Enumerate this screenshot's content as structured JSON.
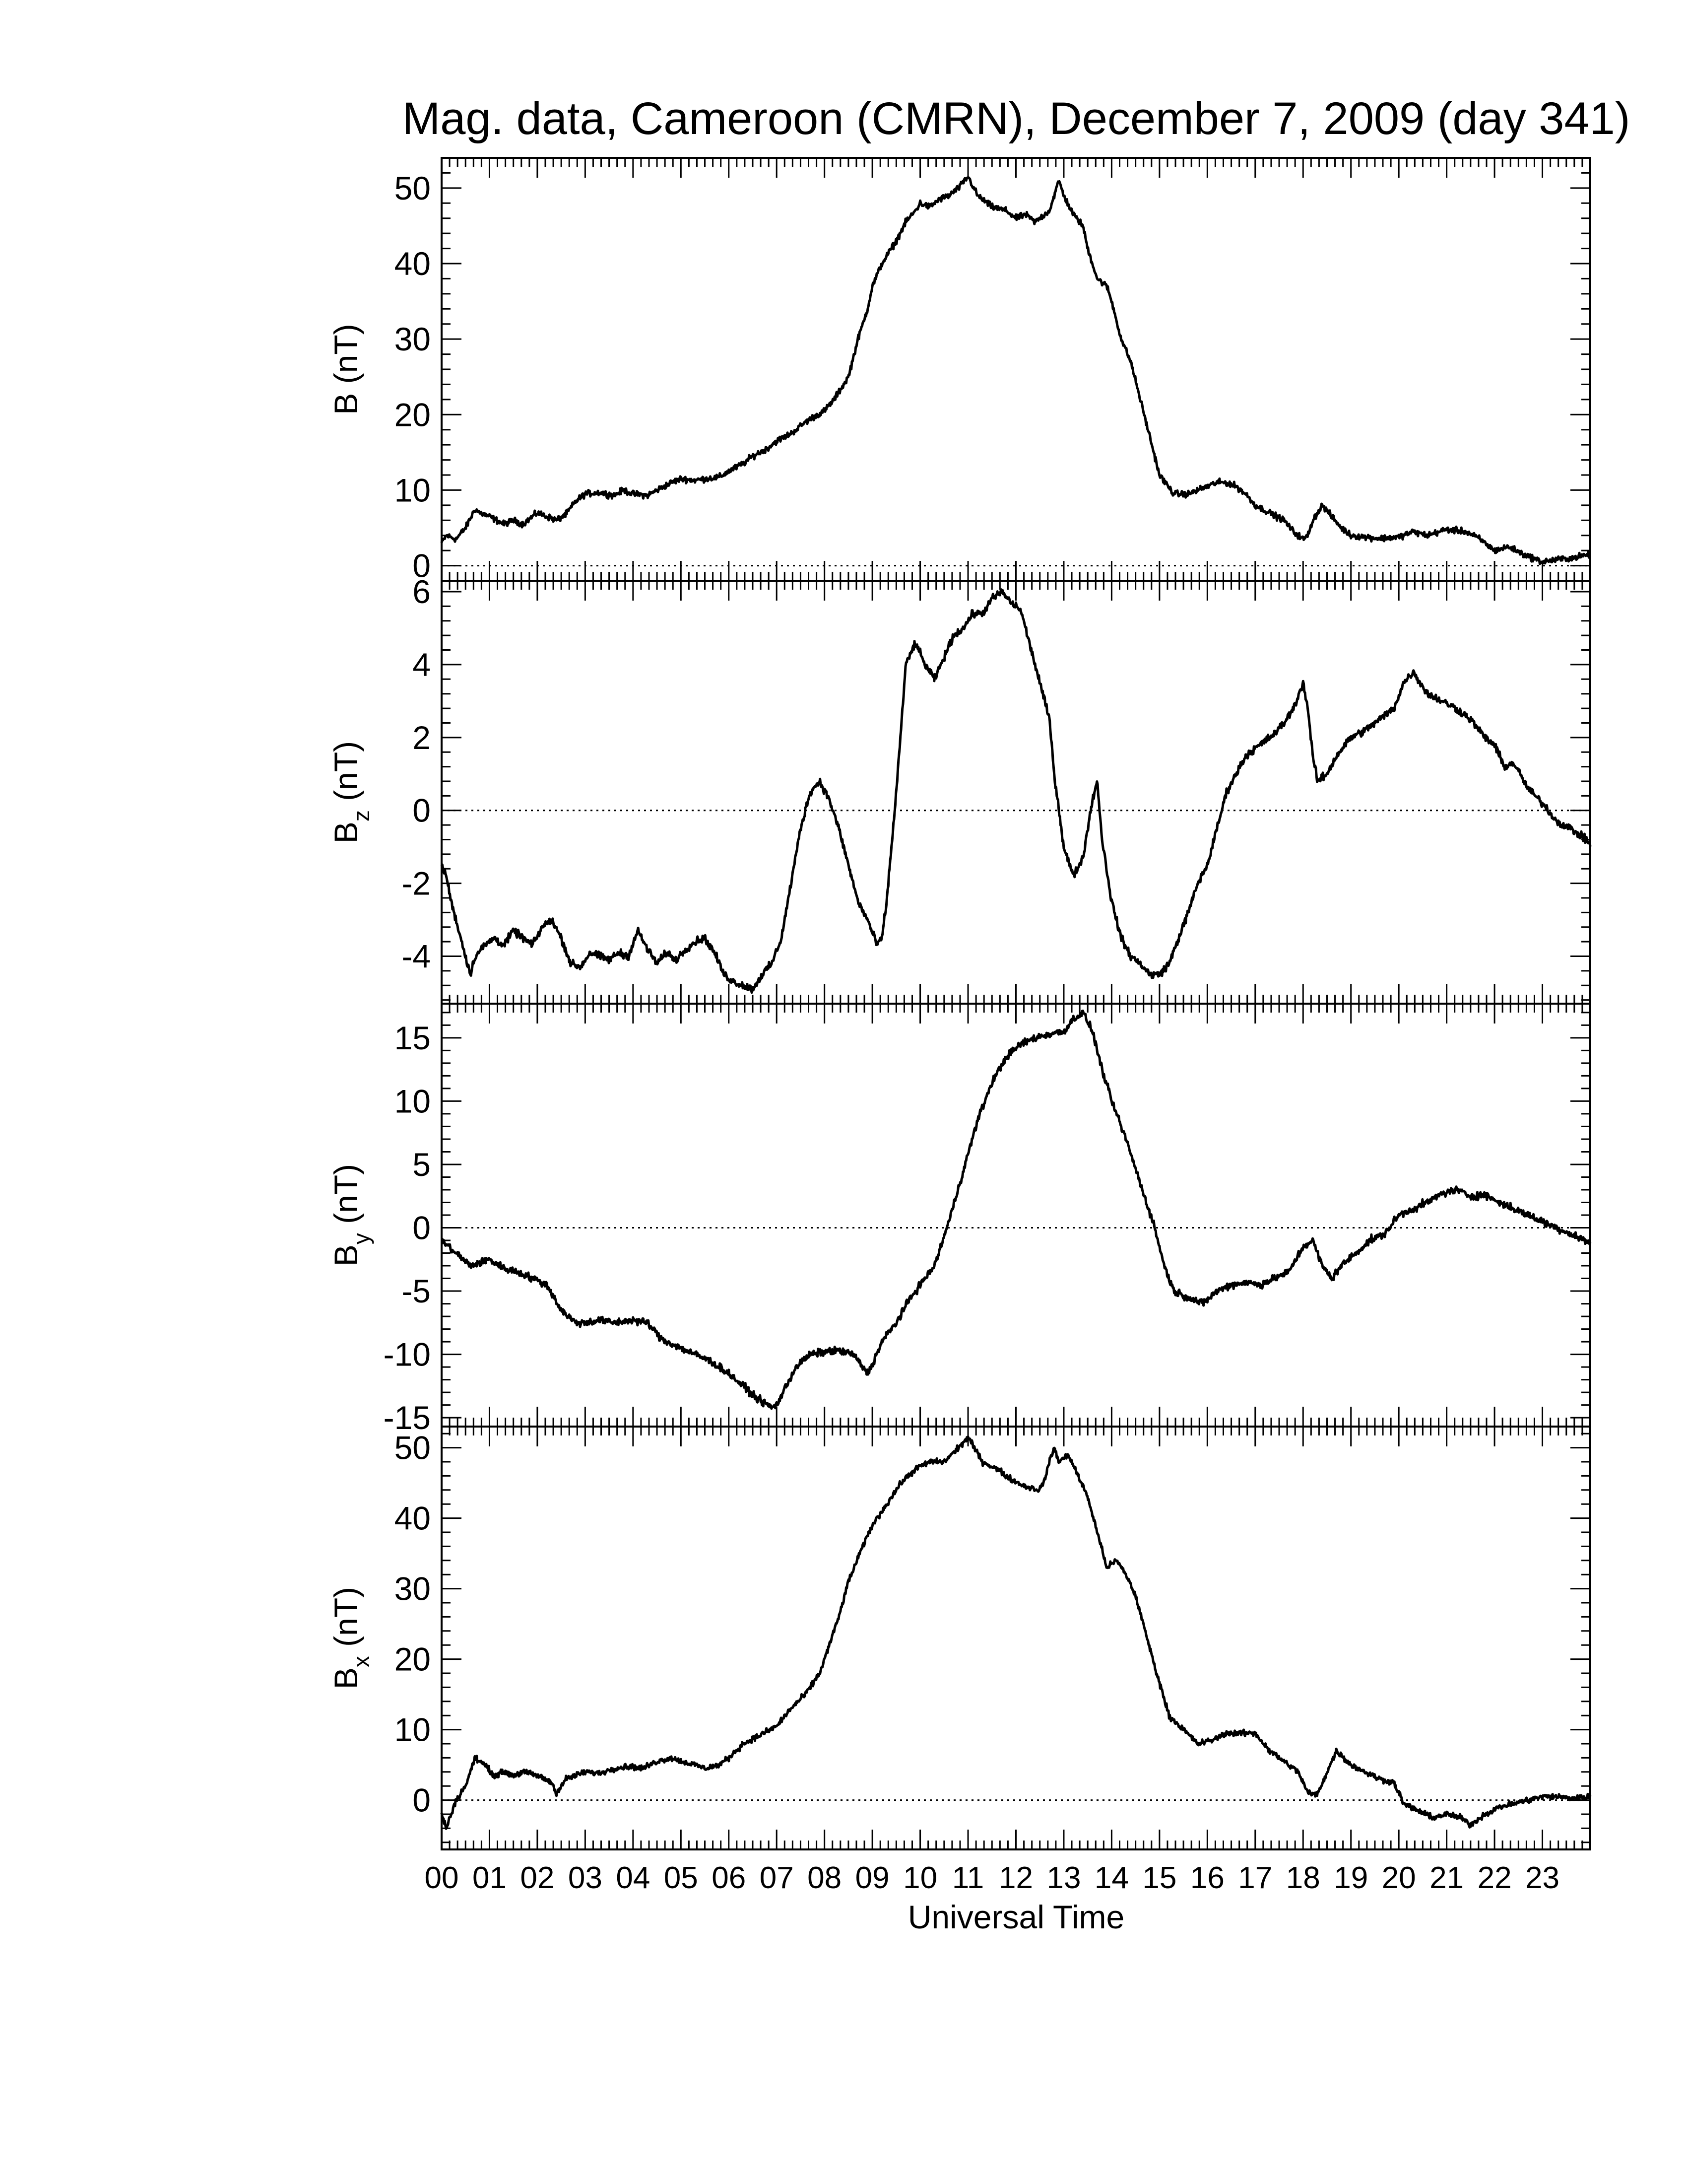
{
  "chart_data": {
    "title": "Mag. data, Cameroon (CMRN), December 7, 2009 (day 341)",
    "xlabel": "Universal Time",
    "x_tick_labels": [
      "00",
      "01",
      "02",
      "03",
      "04",
      "05",
      "06",
      "07",
      "08",
      "09",
      "10",
      "11",
      "12",
      "13",
      "14",
      "15",
      "16",
      "17",
      "18",
      "19",
      "20",
      "21",
      "22",
      "23"
    ],
    "x_range_hours": [
      0,
      24
    ],
    "grid": false,
    "panels": [
      {
        "type": "line",
        "ylabel_main": "B",
        "ylabel_sub": "",
        "ylabel_unit": "(nT)",
        "ylim": [
          -2,
          54
        ],
        "yticks": [
          0,
          10,
          20,
          30,
          40,
          50
        ],
        "zero_line": true,
        "noise": 0.35,
        "series": [
          {
            "x": [
              0,
              0.1,
              0.3,
              0.5,
              0.7,
              0.8,
              1.0,
              1.3,
              1.5,
              1.7,
              2.0,
              2.2,
              2.4,
              2.6,
              2.8,
              3.0,
              3.3,
              3.6,
              3.8,
              4.0,
              4.3,
              4.5,
              4.8,
              5.0,
              5.3,
              5.5,
              5.8,
              6.0,
              6.3,
              6.5,
              6.8,
              7.0,
              7.3,
              7.6,
              7.8,
              8.0,
              8.2,
              8.5,
              8.7,
              8.9,
              9.0,
              9.2,
              9.5,
              9.7,
              9.9,
              10.0,
              10.2,
              10.4,
              10.6,
              10.8,
              11.0,
              11.2,
              11.5,
              11.8,
              12.0,
              12.2,
              12.4,
              12.6,
              12.7,
              12.8,
              12.9,
              13.0,
              13.2,
              13.4,
              13.5,
              13.7,
              13.9,
              14.0,
              14.2,
              14.4,
              14.6,
              14.8,
              15.0,
              15.3,
              15.6,
              15.8,
              16.0,
              16.2,
              16.4,
              16.6,
              16.8,
              17.0,
              17.3,
              17.6,
              17.8,
              18.0,
              18.1,
              18.2,
              18.4,
              18.6,
              18.8,
              19.0,
              19.3,
              19.6,
              20.0,
              20.3,
              20.6,
              21.0,
              21.4,
              21.7,
              22.0,
              22.3,
              22.6,
              23.0,
              23.3,
              23.6,
              24.0
            ],
            "y": [
              3,
              4,
              3.5,
              5,
              7.5,
              7,
              6.5,
              5.5,
              6,
              5.5,
              7,
              6.5,
              6,
              6.8,
              8.5,
              9.5,
              9.7,
              9.3,
              10,
              9.5,
              9.3,
              10,
              11,
              11.5,
              11.3,
              11.5,
              11.7,
              12.5,
              13.5,
              14.5,
              15.5,
              16.5,
              17.5,
              19,
              19.8,
              20.5,
              22,
              25,
              30,
              34,
              37,
              40,
              43,
              45.5,
              47,
              48,
              47.5,
              48.5,
              49,
              50,
              51.5,
              49,
              47.5,
              47,
              46,
              46.5,
              45.5,
              46.5,
              47,
              49,
              51,
              49,
              46.5,
              45,
              42,
              38,
              37,
              35,
              30,
              27,
              22,
              17,
              12,
              9.5,
              9.5,
              10,
              10.5,
              11,
              11,
              10.5,
              9.5,
              8,
              7,
              6,
              4.5,
              3.5,
              4,
              6,
              8,
              6.5,
              5,
              4,
              3.8,
              3.6,
              3.8,
              4.5,
              4,
              4.8,
              4.5,
              3.5,
              2,
              2.5,
              1.5,
              0.5,
              0.8,
              1,
              1.5
            ]
          }
        ]
      },
      {
        "type": "line",
        "ylabel_main": "B",
        "ylabel_sub": "z",
        "ylabel_unit": "(nT)",
        "ylim": [
          -5.3,
          6.3
        ],
        "yticks": [
          -4,
          -2,
          0,
          2,
          4,
          6
        ],
        "zero_line": true,
        "noise": 0.09,
        "series": [
          {
            "x": [
              0,
              0.1,
              0.2,
              0.4,
              0.6,
              0.7,
              0.9,
              1.1,
              1.3,
              1.5,
              1.7,
              1.9,
              2.1,
              2.3,
              2.5,
              2.7,
              2.9,
              3.1,
              3.3,
              3.5,
              3.7,
              3.9,
              4.1,
              4.3,
              4.5,
              4.7,
              4.9,
              5.1,
              5.3,
              5.5,
              5.7,
              5.9,
              6.1,
              6.3,
              6.5,
              6.7,
              6.9,
              7.1,
              7.3,
              7.5,
              7.7,
              7.9,
              8.1,
              8.3,
              8.5,
              8.7,
              8.9,
              9.1,
              9.2,
              9.3,
              9.5,
              9.7,
              9.9,
              10.1,
              10.3,
              10.5,
              10.7,
              10.9,
              11.1,
              11.3,
              11.5,
              11.7,
              11.9,
              12.1,
              12.3,
              12.5,
              12.7,
              12.8,
              12.9,
              13.0,
              13.2,
              13.4,
              13.5,
              13.6,
              13.7,
              13.8,
              14.0,
              14.2,
              14.4,
              14.6,
              14.8,
              15.0,
              15.2,
              15.4,
              15.6,
              15.8,
              16.0,
              16.2,
              16.4,
              16.6,
              16.8,
              17.0,
              17.2,
              17.4,
              17.6,
              17.8,
              18.0,
              18.1,
              18.2,
              18.3,
              18.5,
              18.7,
              19.0,
              19.3,
              19.6,
              19.9,
              20.1,
              20.3,
              20.6,
              20.9,
              21.2,
              21.5,
              21.8,
              22.0,
              22.2,
              22.4,
              22.7,
              23.0,
              23.3,
              23.6,
              24.0
            ],
            "y": [
              -1.5,
              -1.8,
              -2.5,
              -3.5,
              -4.5,
              -4.0,
              -3.7,
              -3.5,
              -3.7,
              -3.3,
              -3.5,
              -3.7,
              -3.2,
              -3.0,
              -3.5,
              -4.2,
              -4.3,
              -3.9,
              -4.0,
              -4.1,
              -3.9,
              -4.0,
              -3.3,
              -3.8,
              -4.2,
              -3.9,
              -4.1,
              -3.8,
              -3.6,
              -3.5,
              -3.9,
              -4.5,
              -4.7,
              -4.8,
              -4.9,
              -4.5,
              -4.2,
              -3.5,
              -2.0,
              -0.5,
              0.5,
              0.8,
              0.3,
              -0.5,
              -1.5,
              -2.5,
              -3.0,
              -3.7,
              -3.5,
              -2.5,
              0.5,
              4.0,
              4.6,
              4.0,
              3.6,
              4.2,
              4.8,
              5.0,
              5.4,
              5.4,
              5.8,
              6.0,
              5.7,
              5.5,
              4.5,
              3.5,
              2.5,
              1.0,
              0.0,
              -1.0,
              -1.8,
              -1.3,
              -0.5,
              0.3,
              0.8,
              -0.8,
              -2.5,
              -3.5,
              -4.0,
              -4.2,
              -4.5,
              -4.5,
              -4.2,
              -3.5,
              -2.8,
              -2.0,
              -1.5,
              -0.5,
              0.5,
              1.0,
              1.5,
              1.7,
              1.9,
              2.1,
              2.4,
              2.8,
              3.5,
              2.8,
              1.5,
              0.8,
              1.0,
              1.5,
              2.0,
              2.2,
              2.5,
              2.8,
              3.5,
              3.8,
              3.2,
              3.0,
              2.8,
              2.5,
              2.0,
              1.8,
              1.2,
              1.3,
              0.6,
              0.2,
              -0.3,
              -0.5,
              -0.9
            ]
          }
        ]
      },
      {
        "type": "line",
        "ylabel_main": "B",
        "ylabel_sub": "y",
        "ylabel_unit": "(nT)",
        "ylim": [
          -15.7,
          17.7
        ],
        "yticks": [
          -15,
          -10,
          -5,
          0,
          5,
          10,
          15
        ],
        "zero_line": true,
        "noise": 0.25,
        "series": [
          {
            "x": [
              0,
              0.3,
              0.6,
              1.0,
              1.3,
              1.6,
              1.9,
              2.2,
              2.5,
              2.8,
              3.0,
              3.3,
              3.6,
              4.0,
              4.3,
              4.6,
              5.0,
              5.3,
              5.6,
              6.0,
              6.3,
              6.6,
              6.9,
              7.0,
              7.2,
              7.4,
              7.7,
              8.0,
              8.3,
              8.6,
              8.9,
              9.0,
              9.2,
              9.5,
              9.8,
              10.0,
              10.3,
              10.6,
              10.9,
              11.2,
              11.5,
              11.8,
              12.1,
              12.4,
              12.7,
              13.0,
              13.2,
              13.4,
              13.6,
              13.8,
              14.0,
              14.3,
              14.6,
              14.9,
              15.1,
              15.3,
              15.6,
              15.9,
              16.2,
              16.5,
              16.8,
              17.1,
              17.4,
              17.7,
              18.0,
              18.2,
              18.4,
              18.6,
              18.8,
              19.1,
              19.4,
              19.7,
              20.0,
              20.3,
              20.6,
              20.9,
              21.2,
              21.5,
              21.8,
              22.1,
              22.4,
              22.7,
              23.0,
              23.3,
              23.6,
              24.0
            ],
            "y": [
              -1,
              -2,
              -3,
              -2.5,
              -3.2,
              -3.5,
              -4.0,
              -4.5,
              -6.5,
              -7.5,
              -7.5,
              -7.3,
              -7.5,
              -7.3,
              -7.5,
              -8.8,
              -9.5,
              -10.0,
              -10.5,
              -11.5,
              -12.5,
              -13.5,
              -14.2,
              -14.0,
              -12.5,
              -11.0,
              -10.0,
              -9.8,
              -9.7,
              -10.0,
              -11.5,
              -10.8,
              -9.0,
              -7.5,
              -5.5,
              -4.5,
              -3.0,
              0.5,
              4.5,
              8.5,
              11.5,
              13.5,
              14.5,
              15.0,
              15.3,
              15.5,
              16.5,
              17.0,
              15.5,
              12.5,
              10.0,
              7.0,
              3.5,
              0.0,
              -3.0,
              -5.0,
              -5.5,
              -6.0,
              -5.0,
              -4.5,
              -4.3,
              -4.5,
              -4.0,
              -3.5,
              -1.5,
              -1.0,
              -3.0,
              -4.0,
              -3.0,
              -2.0,
              -1.0,
              -0.5,
              1.0,
              1.5,
              2.0,
              2.7,
              3.0,
              2.5,
              2.6,
              2.0,
              1.5,
              1.0,
              0.5,
              0.0,
              -0.5,
              -1.2
            ]
          }
        ]
      },
      {
        "type": "line",
        "ylabel_main": "B",
        "ylabel_sub": "x",
        "ylabel_unit": "(nT)",
        "ylim": [
          -7,
          53
        ],
        "yticks": [
          0,
          10,
          20,
          30,
          40,
          50
        ],
        "zero_line": true,
        "noise": 0.35,
        "series": [
          {
            "x": [
              0,
              0.1,
              0.15,
              0.2,
              0.3,
              0.5,
              0.7,
              0.9,
              1.1,
              1.3,
              1.5,
              1.7,
              2.0,
              2.3,
              2.4,
              2.6,
              2.8,
              3.0,
              3.3,
              3.6,
              3.9,
              4.2,
              4.5,
              4.8,
              5.0,
              5.3,
              5.5,
              5.8,
              6.0,
              6.3,
              6.6,
              7.0,
              7.3,
              7.6,
              7.9,
              8.1,
              8.3,
              8.5,
              8.8,
              9.0,
              9.3,
              9.6,
              9.9,
              10.2,
              10.5,
              10.8,
              11.0,
              11.3,
              11.6,
              11.9,
              12.2,
              12.5,
              12.6,
              12.7,
              12.8,
              12.9,
              13.1,
              13.3,
              13.5,
              13.7,
              13.9,
              14.1,
              14.3,
              14.5,
              14.7,
              14.9,
              15.2,
              15.5,
              15.8,
              16.1,
              16.4,
              16.7,
              17.0,
              17.3,
              17.6,
              17.9,
              18.0,
              18.1,
              18.3,
              18.5,
              18.7,
              19.0,
              19.3,
              19.6,
              19.9,
              20.1,
              20.4,
              20.7,
              21.0,
              21.3,
              21.5,
              21.8,
              22.1,
              22.4,
              22.7,
              23.0,
              23.3,
              23.6,
              24.0
            ],
            "y": [
              -2,
              -4,
              -3,
              -2,
              0,
              2,
              6,
              5,
              3.5,
              4,
              3.5,
              4,
              3.5,
              2.5,
              1,
              3,
              3.5,
              4,
              3.8,
              4.5,
              4.8,
              4.5,
              5.5,
              6,
              5.5,
              5,
              4.5,
              5,
              6,
              8,
              9,
              10.5,
              13,
              15,
              18,
              22,
              26,
              31,
              36,
              39,
              42,
              45,
              47,
              48,
              48,
              50,
              51.5,
              48,
              47,
              45.5,
              44.5,
              44,
              45.5,
              48,
              50,
              48,
              49,
              46,
              43,
              38,
              33,
              34,
              32,
              29,
              24,
              19,
              12,
              10,
              8,
              8.5,
              9.5,
              9.5,
              9.5,
              7,
              5.5,
              4,
              2.5,
              1,
              0.8,
              4,
              7,
              5,
              4,
              3,
              2.5,
              -0.5,
              -1.5,
              -2.5,
              -2,
              -2.5,
              -3.5,
              -2,
              -1,
              -0.5,
              0,
              0.5,
              0.5,
              0.3,
              0.5
            ]
          }
        ]
      }
    ]
  }
}
